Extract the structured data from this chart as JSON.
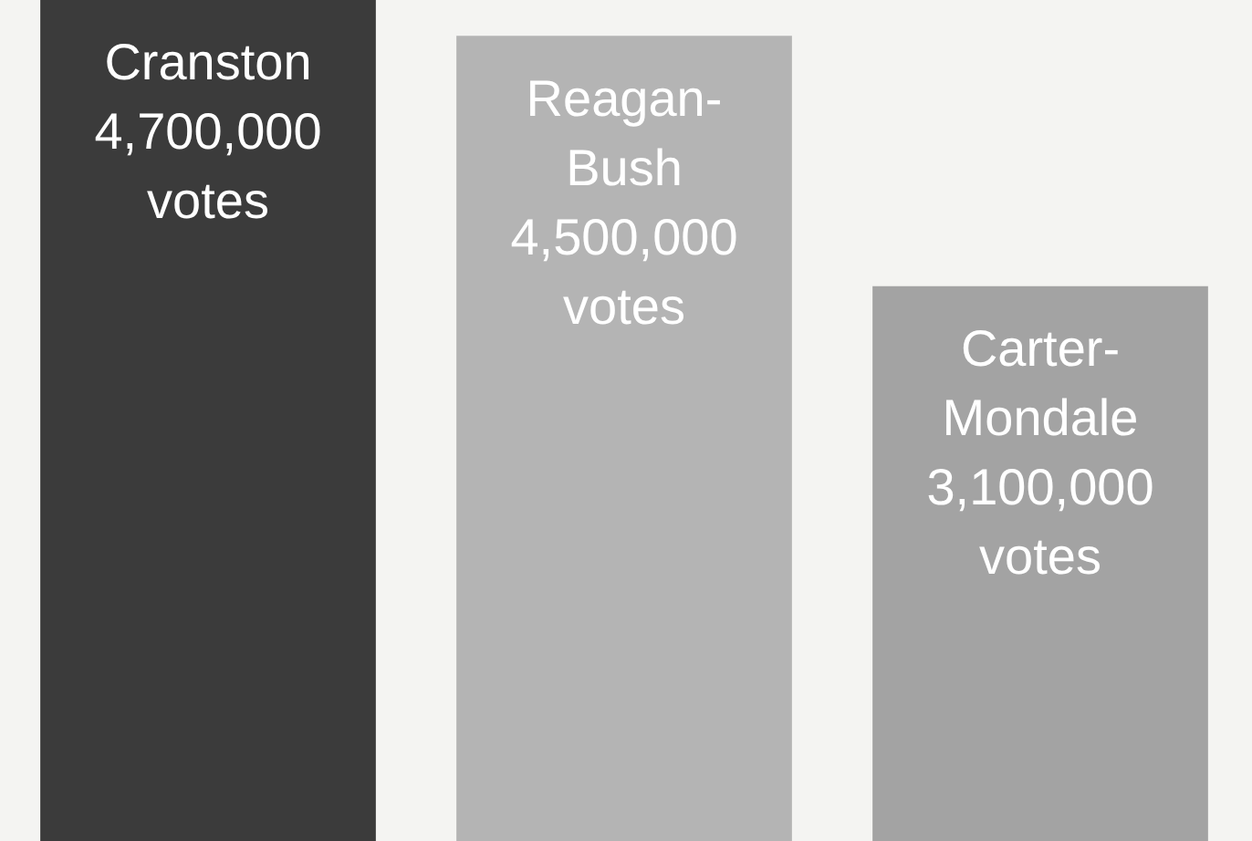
{
  "chart_data": {
    "type": "bar",
    "categories": [
      "Cranston",
      "Reagan-Bush",
      "Carter-Mondale"
    ],
    "values": [
      4700000,
      4500000,
      3100000
    ],
    "colors": [
      "#3b3b3b",
      "#b4b4b4",
      "#a3a3a3"
    ],
    "value_labels": [
      "4,700,000 votes",
      "4,500,000 votes",
      "3,100,000 votes"
    ]
  }
}
